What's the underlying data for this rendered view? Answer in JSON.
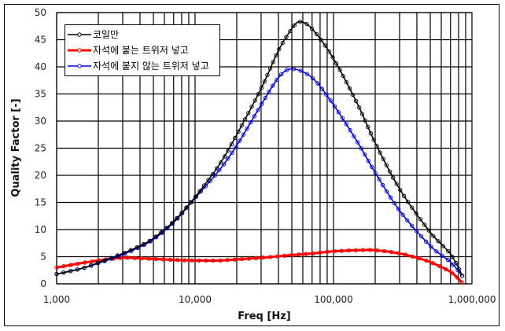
{
  "chart_data": {
    "type": "line",
    "title": "",
    "xlabel": "Freq [Hz]",
    "ylabel": "Quality Factor [-]",
    "xscale": "log",
    "xlim": [
      1000,
      1000000
    ],
    "ylim": [
      0,
      50
    ],
    "grid": true,
    "legend_position": "upper-left",
    "x_tick_labels": [
      "1,000",
      "10,000",
      "100,000",
      "1,000,000"
    ],
    "y_tick_labels": [
      "0",
      "5",
      "10",
      "15",
      "20",
      "25",
      "30",
      "35",
      "40",
      "45",
      "50"
    ],
    "series": [
      {
        "name": "코일만",
        "color": "#000000",
        "marker": "circle",
        "x": [
          1000,
          1500,
          2000,
          3000,
          4000,
          5000,
          7000,
          10000,
          15000,
          20000,
          30000,
          40000,
          50000,
          57000,
          70000,
          100000,
          150000,
          200000,
          300000,
          500000,
          700000,
          850000
        ],
        "values": [
          1.8,
          2.8,
          3.9,
          5.6,
          7.0,
          8.4,
          11.5,
          16.0,
          22.0,
          27.5,
          36.0,
          43.0,
          47.0,
          48.3,
          47.0,
          41.5,
          33.0,
          26.0,
          17.5,
          9.5,
          5.5,
          1.5
        ]
      },
      {
        "name": "자석에 붙는 트위저 넣고",
        "color": "#ff0000",
        "marker": "circle",
        "x": [
          1000,
          1500,
          2000,
          3000,
          4000,
          5000,
          7000,
          10000,
          15000,
          20000,
          30000,
          50000,
          70000,
          100000,
          150000,
          200000,
          300000,
          400000,
          500000,
          700000,
          850000
        ],
        "values": [
          3.0,
          3.8,
          4.3,
          4.8,
          4.7,
          4.6,
          4.4,
          4.3,
          4.3,
          4.5,
          4.8,
          5.3,
          5.6,
          6.0,
          6.2,
          6.2,
          5.6,
          4.8,
          4.0,
          2.2,
          0.2
        ]
      },
      {
        "name": "자석에 붙지 않는 트위저 넣고",
        "color": "#0000ff",
        "marker": "circle",
        "x": [
          1000,
          1500,
          2000,
          3000,
          4000,
          5000,
          7000,
          10000,
          15000,
          20000,
          30000,
          40000,
          50000,
          70000,
          100000,
          150000,
          200000,
          300000,
          500000,
          700000,
          850000
        ],
        "values": [
          1.8,
          2.8,
          3.8,
          5.4,
          6.8,
          8.2,
          11.3,
          15.8,
          21.0,
          25.5,
          33.0,
          38.0,
          39.6,
          38.0,
          33.0,
          26.0,
          20.5,
          13.5,
          7.0,
          4.0,
          1.5
        ]
      }
    ]
  }
}
